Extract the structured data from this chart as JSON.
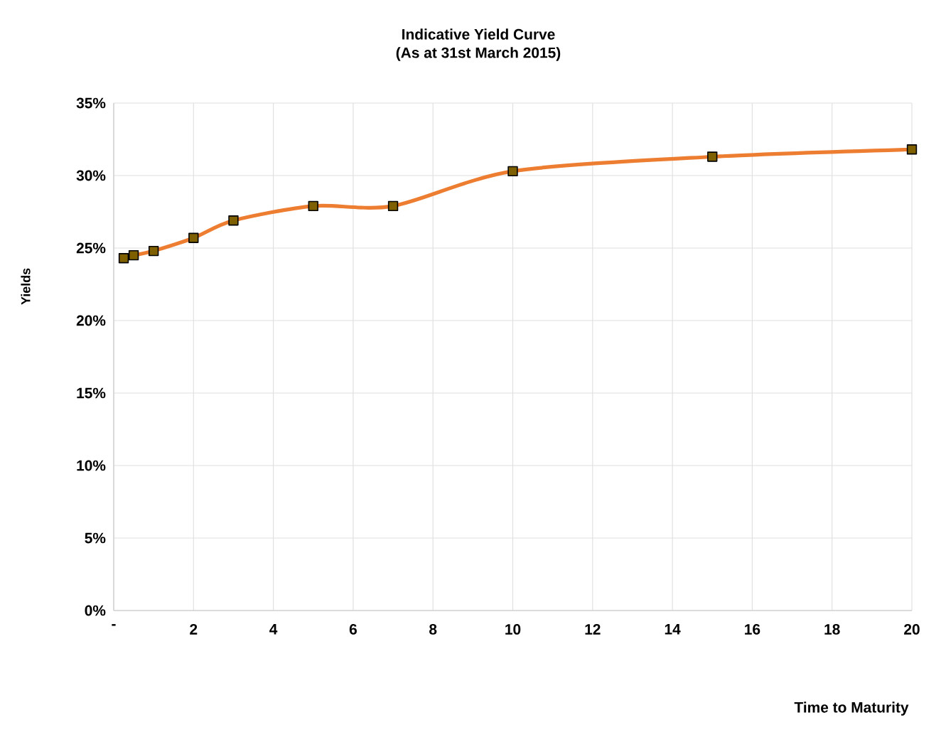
{
  "chart_data": {
    "type": "line",
    "title": "Indicative  Yield Curve",
    "subtitle": "(As at 31st March 2015)",
    "xlabel": "Time to Maturity",
    "ylabel": "Yields",
    "x": [
      0.25,
      0.5,
      1,
      2,
      3,
      5,
      7,
      10,
      15,
      20
    ],
    "series": [
      {
        "color": "#ed7d31",
        "values": [
          24.3,
          24.5,
          24.8,
          25.7,
          26.9,
          27.9,
          27.9,
          30.3,
          31.3,
          31.8
        ]
      }
    ],
    "xlim": [
      0,
      20
    ],
    "ylim": [
      0,
      35
    ],
    "xticks": [
      {
        "value": 0,
        "label": "-"
      },
      2,
      4,
      6,
      8,
      10,
      12,
      14,
      16,
      18,
      20
    ],
    "yticks": [
      {
        "value": 0,
        "label": "0%"
      },
      {
        "value": 5,
        "label": "5%"
      },
      {
        "value": 10,
        "label": "10%"
      },
      {
        "value": 15,
        "label": "15%"
      },
      {
        "value": 20,
        "label": "20%"
      },
      {
        "value": 25,
        "label": "25%"
      },
      {
        "value": 30,
        "label": "30%"
      },
      {
        "value": 35,
        "label": "35%"
      }
    ],
    "grid": true,
    "marker": "square",
    "line_style": "solid"
  }
}
